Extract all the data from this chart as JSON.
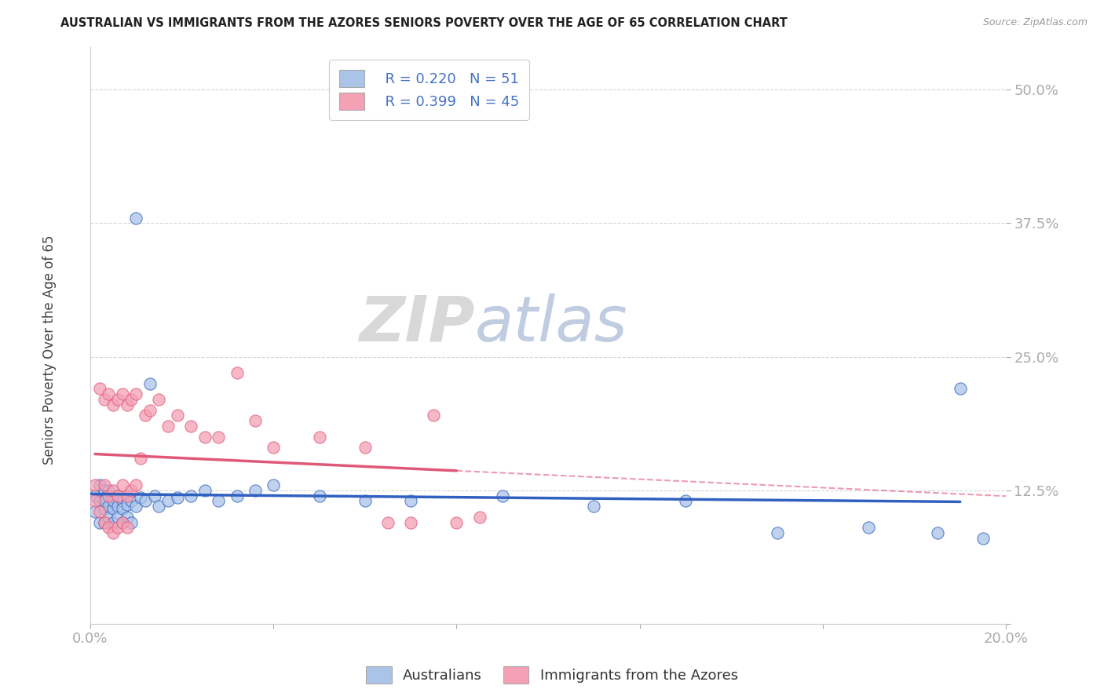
{
  "title": "AUSTRALIAN VS IMMIGRANTS FROM THE AZORES SENIORS POVERTY OVER THE AGE OF 65 CORRELATION CHART",
  "source": "Source: ZipAtlas.com",
  "ylabel": "Seniors Poverty Over the Age of 65",
  "xlim": [
    0.0,
    0.2
  ],
  "ylim": [
    0.0,
    0.54
  ],
  "xticks": [
    0.0,
    0.04,
    0.08,
    0.12,
    0.16,
    0.2
  ],
  "yticks": [
    0.0,
    0.125,
    0.25,
    0.375,
    0.5
  ],
  "legend_R_blue": "R = 0.220",
  "legend_N_blue": "N = 51",
  "legend_R_pink": "R = 0.399",
  "legend_N_pink": "N = 45",
  "blue_color": "#aac4e8",
  "pink_color": "#f4a0b5",
  "blue_line_color": "#3060c0",
  "pink_line_color": "#e05878",
  "watermark_zip": "ZIP",
  "watermark_atlas": "atlas",
  "background_color": "#ffffff",
  "grid_color": "#cccccc",
  "blue_scatter_x": [
    0.001,
    0.001,
    0.002,
    0.002,
    0.002,
    0.003,
    0.003,
    0.003,
    0.003,
    0.004,
    0.004,
    0.004,
    0.005,
    0.005,
    0.005,
    0.006,
    0.006,
    0.006,
    0.007,
    0.007,
    0.007,
    0.008,
    0.008,
    0.009,
    0.009,
    0.01,
    0.01,
    0.011,
    0.012,
    0.013,
    0.014,
    0.015,
    0.017,
    0.019,
    0.022,
    0.025,
    0.028,
    0.032,
    0.036,
    0.04,
    0.05,
    0.06,
    0.07,
    0.09,
    0.11,
    0.13,
    0.15,
    0.17,
    0.185,
    0.19,
    0.195
  ],
  "blue_scatter_y": [
    0.12,
    0.105,
    0.115,
    0.095,
    0.13,
    0.108,
    0.125,
    0.095,
    0.115,
    0.11,
    0.1,
    0.125,
    0.108,
    0.115,
    0.095,
    0.11,
    0.12,
    0.1,
    0.115,
    0.108,
    0.095,
    0.112,
    0.1,
    0.115,
    0.095,
    0.11,
    0.38,
    0.118,
    0.115,
    0.225,
    0.12,
    0.11,
    0.115,
    0.118,
    0.12,
    0.125,
    0.115,
    0.12,
    0.125,
    0.13,
    0.12,
    0.115,
    0.115,
    0.12,
    0.11,
    0.115,
    0.085,
    0.09,
    0.085,
    0.22,
    0.08
  ],
  "pink_scatter_x": [
    0.001,
    0.001,
    0.002,
    0.002,
    0.003,
    0.003,
    0.003,
    0.004,
    0.004,
    0.004,
    0.005,
    0.005,
    0.005,
    0.006,
    0.006,
    0.006,
    0.007,
    0.007,
    0.007,
    0.008,
    0.008,
    0.008,
    0.009,
    0.009,
    0.01,
    0.01,
    0.011,
    0.012,
    0.013,
    0.015,
    0.017,
    0.019,
    0.022,
    0.025,
    0.028,
    0.032,
    0.036,
    0.04,
    0.05,
    0.06,
    0.065,
    0.07,
    0.075,
    0.08,
    0.085
  ],
  "pink_scatter_y": [
    0.13,
    0.115,
    0.22,
    0.105,
    0.21,
    0.13,
    0.095,
    0.215,
    0.12,
    0.09,
    0.205,
    0.125,
    0.085,
    0.21,
    0.12,
    0.09,
    0.215,
    0.13,
    0.095,
    0.205,
    0.12,
    0.09,
    0.21,
    0.125,
    0.215,
    0.13,
    0.155,
    0.195,
    0.2,
    0.21,
    0.185,
    0.195,
    0.185,
    0.175,
    0.175,
    0.235,
    0.19,
    0.165,
    0.175,
    0.165,
    0.095,
    0.095,
    0.195,
    0.095,
    0.1
  ]
}
